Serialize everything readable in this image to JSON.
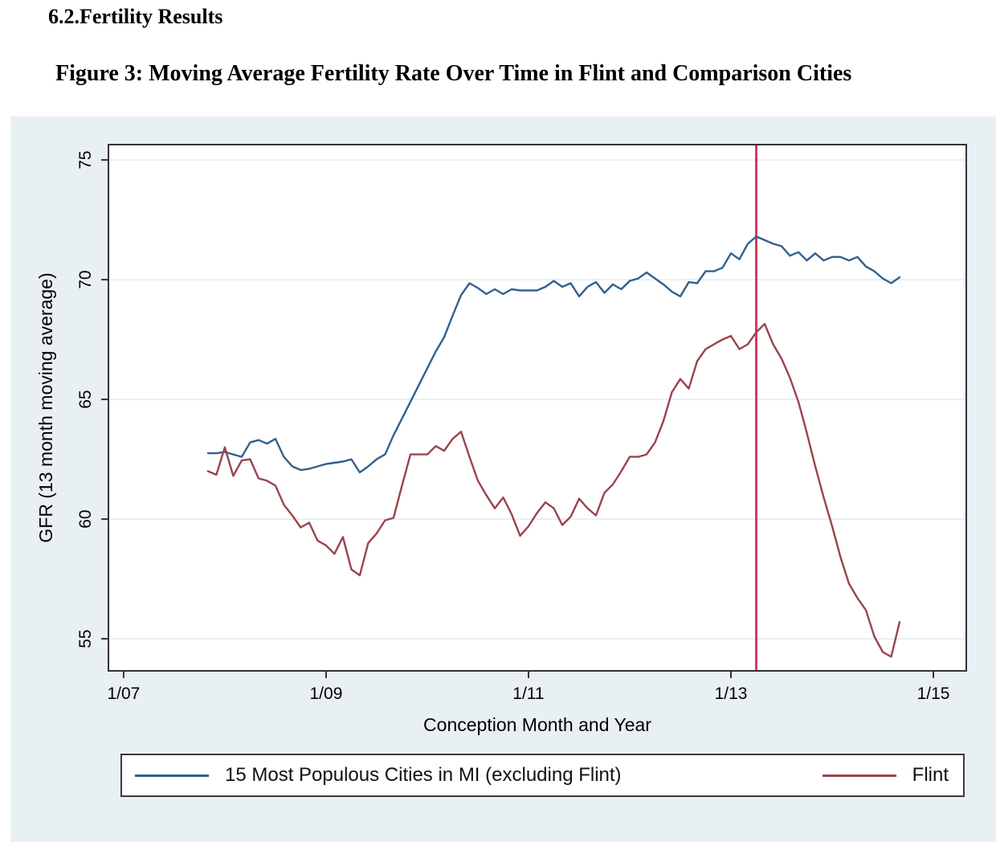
{
  "document": {
    "section_heading": "6.2.Fertility Results",
    "figure_title": "Figure 3: Moving Average Fertility Rate Over Time in Flint and Comparison Cities"
  },
  "colors": {
    "page_background": "#ffffff",
    "panel_background": "#e9f0f4",
    "plot_background": "#ffffff",
    "gridline": "#e1ecf3",
    "axis": "#333333",
    "comparison_line": "#33608c",
    "flint_line": "#9a434c",
    "reference_line": "#d13b5f"
  },
  "chart_data": {
    "type": "line",
    "title": "",
    "xlabel": "Conception Month and Year",
    "ylabel": "GFR (13 month moving average)",
    "x_unit": "months since January 2007",
    "start_month": "2007-11",
    "end_month": "2014-09",
    "x_tick_labels": [
      "1/07",
      "1/09",
      "1/11",
      "1/13",
      "1/15"
    ],
    "x_tick_months": [
      0,
      24,
      48,
      72,
      96
    ],
    "y_ticks": [
      55,
      60,
      65,
      70,
      75
    ],
    "xlim_months": [
      -1.8,
      99.9
    ],
    "ylim": [
      53.66,
      75.64
    ],
    "grid": true,
    "legend_position": "bottom",
    "vline": {
      "month": 75,
      "approx_date": "2013-04",
      "color": "#d13b5f"
    },
    "months": [
      10,
      11,
      12,
      13,
      14,
      15,
      16,
      17,
      18,
      19,
      20,
      21,
      22,
      23,
      24,
      25,
      26,
      27,
      28,
      29,
      30,
      31,
      32,
      33,
      34,
      35,
      36,
      37,
      38,
      39,
      40,
      41,
      42,
      43,
      44,
      45,
      46,
      47,
      48,
      49,
      50,
      51,
      52,
      53,
      54,
      55,
      56,
      57,
      58,
      59,
      60,
      61,
      62,
      63,
      64,
      65,
      66,
      67,
      68,
      69,
      70,
      71,
      72,
      73,
      74,
      75,
      76,
      77,
      78,
      79,
      80,
      81,
      82,
      83,
      84,
      85,
      86,
      87,
      88,
      89,
      90,
      91,
      92
    ],
    "series": [
      {
        "name": "15 Most Populous Cities in MI (excluding Flint)",
        "color": "#33608c",
        "values": [
          62.75,
          62.75,
          62.8,
          62.7,
          62.6,
          63.2,
          63.3,
          63.15,
          63.35,
          62.6,
          62.2,
          62.05,
          62.1,
          62.2,
          62.3,
          62.35,
          62.4,
          62.5,
          61.95,
          62.2,
          62.5,
          62.7,
          63.5,
          64.2,
          64.9,
          65.6,
          66.3,
          67.0,
          67.6,
          68.5,
          69.35,
          69.85,
          69.65,
          69.4,
          69.6,
          69.4,
          69.6,
          69.55,
          69.55,
          69.55,
          69.7,
          69.95,
          69.7,
          69.85,
          69.3,
          69.7,
          69.9,
          69.45,
          69.8,
          69.6,
          69.95,
          70.05,
          70.3,
          70.05,
          69.8,
          69.5,
          69.3,
          69.9,
          69.85,
          70.35,
          70.35,
          70.5,
          71.1,
          70.85,
          71.5,
          71.8,
          71.65,
          71.5,
          71.4,
          71.0,
          71.15,
          70.8,
          71.1,
          70.8,
          70.95,
          70.95,
          70.8,
          70.95,
          70.55,
          70.35,
          70.05,
          69.85,
          70.1
        ]
      },
      {
        "name": "Flint",
        "color": "#9a434c",
        "values": [
          62.0,
          61.85,
          63.0,
          61.8,
          62.45,
          62.5,
          61.7,
          61.6,
          61.4,
          60.6,
          60.15,
          59.65,
          59.85,
          59.1,
          58.9,
          58.55,
          59.25,
          57.9,
          57.65,
          59.0,
          59.4,
          59.95,
          60.05,
          61.4,
          62.7,
          62.7,
          62.7,
          63.05,
          62.85,
          63.35,
          63.65,
          62.6,
          61.6,
          61.0,
          60.45,
          60.9,
          60.2,
          59.3,
          59.7,
          60.25,
          60.7,
          60.45,
          59.75,
          60.1,
          60.85,
          60.45,
          60.15,
          61.1,
          61.45,
          62.0,
          62.6,
          62.6,
          62.7,
          63.2,
          64.1,
          65.3,
          65.85,
          65.45,
          66.6,
          67.1,
          67.3,
          67.5,
          67.65,
          67.1,
          67.3,
          67.8,
          68.15,
          67.3,
          66.7,
          65.9,
          64.9,
          63.6,
          62.2,
          60.9,
          59.7,
          58.4,
          57.3,
          56.7,
          56.2,
          55.1,
          54.45,
          54.25,
          55.7
        ]
      }
    ]
  }
}
